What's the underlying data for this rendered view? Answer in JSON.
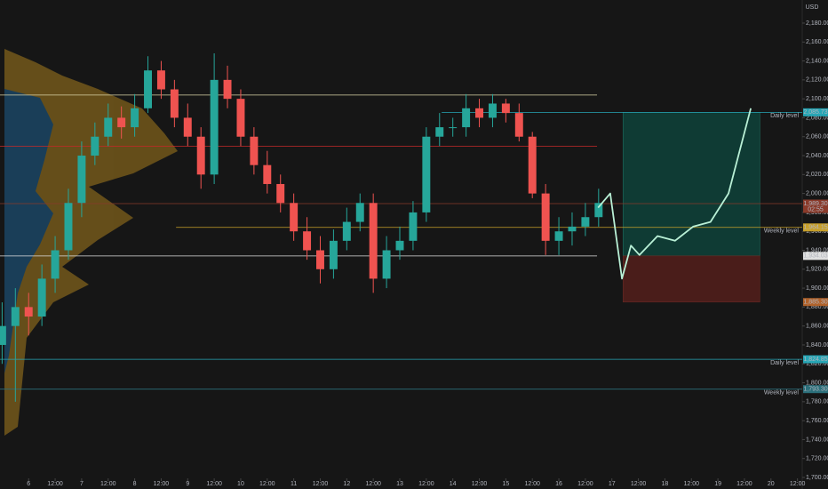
{
  "chart_data": {
    "type": "candlestick",
    "currency": "USD",
    "xlim": [
      5.46,
      20.59
    ],
    "ylim": [
      1687.8,
      2204.4
    ],
    "up_color": "#26a69a",
    "down_color": "#ef5350",
    "xticks": [
      6,
      {
        "value": 6.5,
        "label": "12:00"
      },
      7,
      {
        "value": 7.5,
        "label": "12:00"
      },
      8,
      {
        "value": 8.5,
        "label": "12:00"
      },
      9,
      {
        "value": 9.5,
        "label": "12:00"
      },
      10,
      {
        "value": 10.5,
        "label": "12:00"
      },
      11,
      {
        "value": 11.5,
        "label": "12:00"
      },
      12,
      {
        "value": 12.5,
        "label": "12:00"
      },
      13,
      {
        "value": 13.5,
        "label": "12:00"
      },
      14,
      {
        "value": 14.5,
        "label": "12:00"
      },
      15,
      {
        "value": 15.5,
        "label": "12:00"
      },
      16,
      {
        "value": 16.5,
        "label": "12:00"
      },
      17,
      {
        "value": 17.5,
        "label": "12:00"
      },
      18,
      {
        "value": 18.5,
        "label": "12:00"
      },
      19,
      {
        "value": 19.5,
        "label": "12:00"
      },
      20,
      {
        "value": 20.5,
        "label": "12:00"
      }
    ],
    "yticks": [
      {
        "value": 1700,
        "label": "1,700.00"
      },
      {
        "value": 1720,
        "label": "1,720.00"
      },
      {
        "value": 1740,
        "label": "1,740.00"
      },
      {
        "value": 1760,
        "label": "1,760.00"
      },
      {
        "value": 1780,
        "label": "1,780.00"
      },
      {
        "value": 1800,
        "label": "1,800.00"
      },
      {
        "value": 1820,
        "label": "1,820.00"
      },
      {
        "value": 1840,
        "label": "1,840.00"
      },
      {
        "value": 1860,
        "label": "1,860.00"
      },
      {
        "value": 1880,
        "label": "1,880.00"
      },
      {
        "value": 1900,
        "label": "1,900.00"
      },
      {
        "value": 1920,
        "label": "1,920.00"
      },
      {
        "value": 1940,
        "label": "1,940.00"
      },
      {
        "value": 1960,
        "label": "1,960.00"
      },
      {
        "value": 1980,
        "label": "1,980.00"
      },
      {
        "value": 2000,
        "label": "2,000.00"
      },
      {
        "value": 2020,
        "label": "2,020.00"
      },
      {
        "value": 2040,
        "label": "2,040.00"
      },
      {
        "value": 2060,
        "label": "2,060.00"
      },
      {
        "value": 2080,
        "label": "2,080.00"
      },
      {
        "value": 2100,
        "label": "2,100.00"
      },
      {
        "value": 2120,
        "label": "2,120.00"
      },
      {
        "value": 2140,
        "label": "2,140.00"
      },
      {
        "value": 2160,
        "label": "2,160.00"
      },
      {
        "value": 2180,
        "label": "2,180.00"
      }
    ],
    "x": [
      5.5,
      5.75,
      6,
      6.25,
      6.5,
      6.75,
      7,
      7.25,
      7.5,
      7.75,
      8,
      8.25,
      8.5,
      8.75,
      9,
      9.25,
      9.5,
      9.75,
      10,
      10.25,
      10.5,
      10.75,
      11,
      11.25,
      11.5,
      11.75,
      12,
      12.25,
      12.5,
      12.75,
      13,
      13.25,
      13.5,
      13.75,
      14,
      14.25,
      14.5,
      14.75,
      15,
      15.25,
      15.5,
      15.75,
      16,
      16.25,
      16.5,
      16.75
    ],
    "open": [
      1840,
      1860,
      1880,
      1870,
      1910,
      1940,
      1990,
      2040,
      2060,
      2080,
      2070,
      2090,
      2130,
      2110,
      2080,
      2060,
      2020,
      2120,
      2100,
      2060,
      2030,
      2010,
      1990,
      1960,
      1940,
      1920,
      1950,
      1970,
      1990,
      1910,
      1940,
      1950,
      1980,
      2060,
      2070,
      2070,
      2090,
      2080,
      2095,
      2085,
      2060,
      2000,
      1950,
      1960,
      1965,
      1975
    ],
    "high": [
      1885,
      1900,
      1895,
      1925,
      1955,
      2005,
      2055,
      2075,
      2095,
      2092,
      2105,
      2145,
      2140,
      2120,
      2095,
      2070,
      2148,
      2135,
      2110,
      2070,
      2045,
      2020,
      2000,
      1975,
      1955,
      1962,
      1985,
      2000,
      2000,
      1955,
      1965,
      1992,
      2070,
      2085,
      2080,
      2105,
      2100,
      2105,
      2100,
      2095,
      2065,
      2010,
      1975,
      1980,
      1990,
      2005
    ],
    "low": [
      1820,
      1780,
      1850,
      1860,
      1895,
      1930,
      1975,
      2030,
      2050,
      2058,
      2060,
      2085,
      2100,
      2070,
      2050,
      2005,
      2010,
      2090,
      2050,
      2020,
      2000,
      1980,
      1950,
      1930,
      1905,
      1910,
      1940,
      1960,
      1895,
      1900,
      1930,
      1940,
      1970,
      2050,
      2060,
      2060,
      2070,
      2070,
      2075,
      2055,
      1995,
      1935,
      1935,
      1945,
      1955,
      1965
    ],
    "close": [
      1860,
      1880,
      1870,
      1910,
      1940,
      1990,
      2040,
      2060,
      2080,
      2070,
      2090,
      2130,
      2110,
      2080,
      2060,
      2020,
      2120,
      2100,
      2060,
      2030,
      2010,
      1990,
      1960,
      1940,
      1920,
      1950,
      1970,
      1990,
      1910,
      1940,
      1950,
      1980,
      2060,
      2070,
      2070,
      2090,
      2080,
      2095,
      2085,
      2060,
      2000,
      1950,
      1960,
      1965,
      1975,
      1990
    ],
    "levels": [
      {
        "value": 2104,
        "from": 5.46,
        "to": 16.72,
        "color": "#d9d3a6"
      },
      {
        "value": 2050,
        "from": 5.46,
        "to": 16.72,
        "color": "#c62828"
      },
      {
        "value": 2085.73,
        "from": 13.79,
        "to": 20.59,
        "color": "#26a6b5",
        "label": "2,085.73",
        "name": "Daily level"
      },
      {
        "value": 1989.3,
        "from": 5.46,
        "to": 20.59,
        "color": "#8a3a2a",
        "label": "1,989.30",
        "countdown": "02:55"
      },
      {
        "value": 1964.15,
        "from": 8.78,
        "to": 20.59,
        "color": "#c8a02a",
        "label": "1,964.15",
        "name": "Weekly level"
      },
      {
        "value": 1934.03,
        "from": 5.46,
        "to": 16.72,
        "color": "#e0e0e0",
        "label": "1,934.03"
      },
      {
        "value": 1824.85,
        "from": 5.46,
        "to": 20.59,
        "color": "#26a6b5",
        "label": "1,824.85",
        "name": "Daily level"
      },
      {
        "value": 1793.3,
        "from": 5.46,
        "to": 20.59,
        "color": "#2b6f7a",
        "label": "1,793.30",
        "name": "Weekly level"
      }
    ],
    "position": {
      "start": 17.21,
      "end": 19.79,
      "target": 2085.73,
      "entry": 1934.03,
      "stop": 1885.3,
      "stop_label": "1,885.30"
    },
    "projection": {
      "color": "#b9f0d6",
      "x": [
        16.74,
        16.97,
        17.19,
        17.36,
        17.52,
        17.86,
        18.19,
        18.53,
        18.86,
        19.2,
        19.62
      ],
      "values": [
        1985,
        2000,
        1910,
        1945,
        1935,
        1955,
        1950,
        1965,
        1970,
        2000,
        2090
      ]
    }
  }
}
